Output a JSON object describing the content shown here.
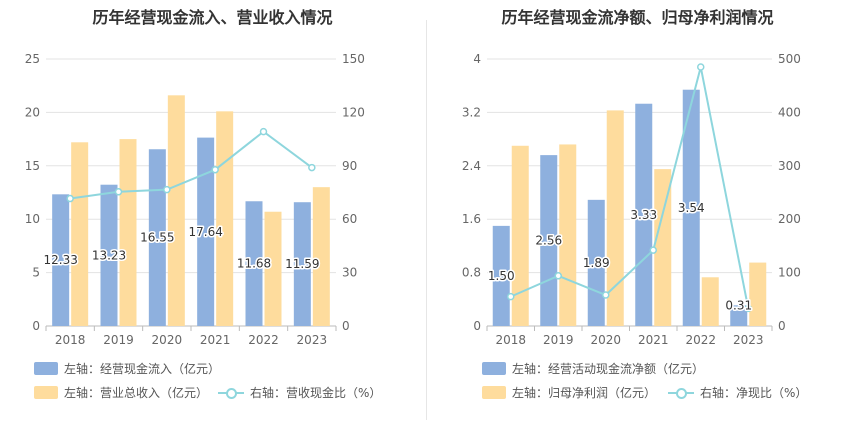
{
  "colors": {
    "bar1": "#8eb0de",
    "bar2": "#fedc9d",
    "line": "#8ed6dd",
    "grid": "#e3e3e3",
    "axis": "#bbbbbb"
  },
  "chart_data": [
    {
      "type": "bar",
      "title": "历年经营现金流入、营业收入情况",
      "categories": [
        "2018",
        "2019",
        "2020",
        "2021",
        "2022",
        "2023"
      ],
      "left_axis": {
        "ylim": [
          0,
          25
        ],
        "ticks": [
          "0",
          "5",
          "10",
          "15",
          "20",
          "25"
        ]
      },
      "right_axis": {
        "ylim": [
          0,
          150
        ],
        "ticks": [
          "0",
          "30",
          "60",
          "90",
          "120",
          "150"
        ]
      },
      "series": [
        {
          "name": "左轴：经营现金流入（亿元）",
          "kind": "bar",
          "axis": "left",
          "values": [
            12.33,
            13.23,
            16.55,
            17.64,
            11.68,
            11.59
          ],
          "labels": [
            "12.33",
            "13.23",
            "16.55",
            "17.64",
            "11.68",
            "11.59"
          ]
        },
        {
          "name": "左轴：营业总收入（亿元）",
          "kind": "bar",
          "axis": "left",
          "values": [
            17.2,
            17.5,
            21.6,
            20.1,
            10.7,
            13.0
          ]
        },
        {
          "name": "右轴：营收现金比（%）",
          "kind": "line",
          "axis": "right",
          "values": [
            71.6,
            75.4,
            76.6,
            87.8,
            109.2,
            89.0
          ]
        }
      ],
      "grid": true,
      "legend": "bottom"
    },
    {
      "type": "bar",
      "title": "历年经营现金流净额、归母净利润情况",
      "categories": [
        "2018",
        "2019",
        "2020",
        "2021",
        "2022",
        "2023"
      ],
      "left_axis": {
        "ylim": [
          0,
          4
        ],
        "ticks": [
          "0",
          "0.8",
          "1.6",
          "2.4",
          "3.2",
          "4"
        ]
      },
      "right_axis": {
        "ylim": [
          0,
          500
        ],
        "ticks": [
          "0",
          "100",
          "200",
          "300",
          "400",
          "500"
        ]
      },
      "series": [
        {
          "name": "左轴：经营活动现金流净额（亿元）",
          "kind": "bar",
          "axis": "left",
          "values": [
            1.5,
            2.56,
            1.89,
            3.33,
            3.54,
            0.31
          ],
          "labels": [
            "1.50",
            "2.56",
            "1.89",
            "3.33",
            "3.54",
            "0.31"
          ]
        },
        {
          "name": "左轴：归母净利润（亿元）",
          "kind": "bar",
          "axis": "left",
          "values": [
            2.7,
            2.72,
            3.23,
            2.35,
            0.73,
            0.95
          ]
        },
        {
          "name": "右轴：净现比（%）",
          "kind": "line",
          "axis": "right",
          "values": [
            55,
            94,
            58,
            142,
            485,
            33
          ]
        }
      ],
      "grid": true,
      "legend": "bottom"
    }
  ]
}
